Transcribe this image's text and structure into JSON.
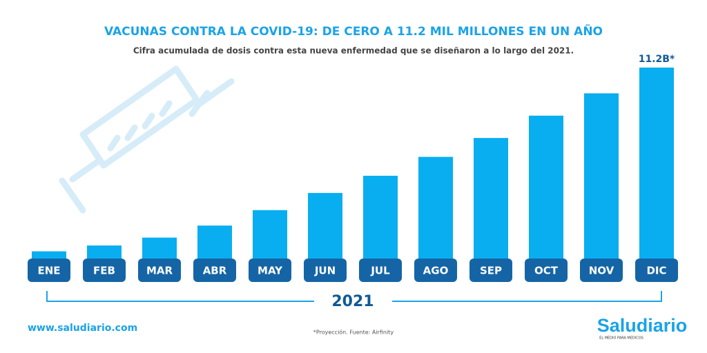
{
  "chart_data": {
    "type": "bar",
    "title": "VACUNAS CONTRA LA COVID-19: DE CERO A 11.2 MIL MILLONES EN UN AÑO",
    "subtitle": "Cifra acumulada de dosis contra esta nueva enfermedad que se diseñaron a lo largo del 2021.",
    "categories": [
      "ENE",
      "FEB",
      "MAR",
      "ABR",
      "MAY",
      "JUN",
      "JUL",
      "AGO",
      "SEP",
      "OCT",
      "NOV",
      "DIC"
    ],
    "values": [
      0.5,
      0.84,
      1.3,
      2.0,
      2.9,
      3.9,
      4.9,
      6.0,
      7.1,
      8.4,
      9.7,
      11.2
    ],
    "value_labels": [
      null,
      null,
      null,
      null,
      null,
      null,
      null,
      null,
      null,
      null,
      null,
      "11.2B*"
    ],
    "color": "#09aef0",
    "x_label": "2021",
    "website": "www.saludiario.com",
    "source": "*Proyección. Fuente: Airfinity",
    "brand": "Saludiario",
    "brand_tagline": "EL MEDIO PARA MEDICOS"
  }
}
